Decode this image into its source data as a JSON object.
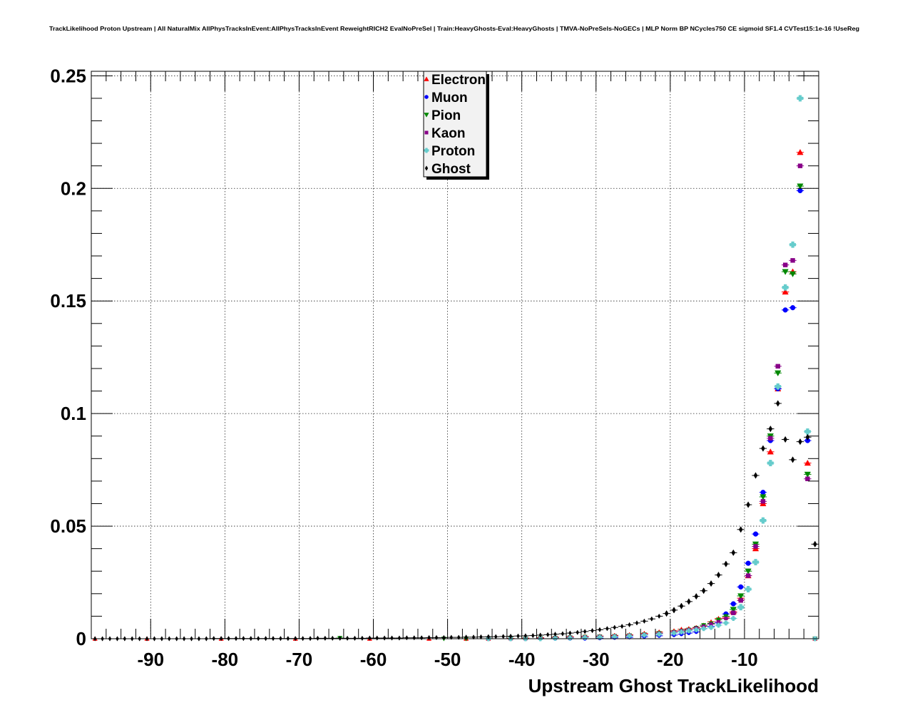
{
  "chart_data": {
    "type": "scatter",
    "title": "TrackLikelihood Proton Upstream | All NaturalMix AllPhysTracksInEvent:AllPhysTracksInEvent ReweightRICH2 EvalNoPreSel | Train:HeavyGhosts-Eval:HeavyGhosts | TMVA-NoPreSels-NoGECs | MLP Norm BP NCycles750 CE sigmoid SF1.4 CVTest15:1e-16 !UseReg",
    "xlabel": "Upstream Ghost TrackLikelihood",
    "ylabel": "",
    "xlim": [
      -98,
      0
    ],
    "ylim": [
      0,
      0.252
    ],
    "x_ticks": [
      -90,
      -80,
      -70,
      -60,
      -50,
      -40,
      -30,
      -20,
      -10
    ],
    "x_tick_labels": [
      "-90",
      "-80",
      "-70",
      "-60",
      "-50",
      "-40",
      "-30",
      "-20",
      "-10"
    ],
    "y_ticks": [
      0,
      0.05,
      0.1,
      0.15,
      0.2,
      0.25
    ],
    "y_tick_labels": [
      "0",
      "0.05",
      "0.1",
      "0.15",
      "0.2",
      "0.25"
    ],
    "grid": true,
    "legend_position": "top-center",
    "bin_width": 1,
    "series": [
      {
        "name": "Electron",
        "color": "#ff0000",
        "marker": "triangle-up",
        "x": [
          -97.5,
          -90.5,
          -80.5,
          -70.5,
          -60.5,
          -52.5,
          -47.5,
          -44.5,
          -41.5,
          -39.5,
          -37.5,
          -35.5,
          -33.5,
          -31.5,
          -29.5,
          -27.5,
          -25.5,
          -23.5,
          -21.5,
          -19.5,
          -18.5,
          -17.5,
          -16.5,
          -15.5,
          -14.5,
          -13.5,
          -12.5,
          -11.5,
          -10.5,
          -9.5,
          -8.5,
          -7.5,
          -6.5,
          -5.5,
          -4.5,
          -3.5,
          -2.5,
          -1.5,
          -0.5
        ],
        "y": [
          0,
          0,
          0,
          0,
          0,
          0,
          0,
          0,
          0.0002,
          0.0003,
          0.0005,
          0.0007,
          0.0009,
          0.001,
          0.0012,
          0.0015,
          0.0018,
          0.0024,
          0.003,
          0.0035,
          0.0042,
          0.0045,
          0.005,
          0.006,
          0.0075,
          0.009,
          0.0095,
          0.012,
          0.018,
          0.028,
          0.04,
          0.06,
          0.083,
          0.111,
          0.154,
          0.163,
          0.216,
          0.078,
          0
        ]
      },
      {
        "name": "Muon",
        "color": "#0000ff",
        "marker": "circle",
        "x": [
          -41.5,
          -39.5,
          -37.5,
          -35.5,
          -33.5,
          -31.5,
          -29.5,
          -27.5,
          -25.5,
          -23.5,
          -21.5,
          -19.5,
          -18.5,
          -17.5,
          -16.5,
          -15.5,
          -14.5,
          -13.5,
          -12.5,
          -11.5,
          -10.5,
          -9.5,
          -8.5,
          -7.5,
          -6.5,
          -5.5,
          -4.5,
          -3.5,
          -2.5,
          -1.5,
          -0.5
        ],
        "y": [
          0,
          0,
          0,
          0,
          0,
          0,
          0.0002,
          0.0004,
          0.0006,
          0.0009,
          0.0013,
          0.0016,
          0.002,
          0.0025,
          0.003,
          0.0045,
          0.0055,
          0.007,
          0.011,
          0.0155,
          0.023,
          0.0335,
          0.0465,
          0.065,
          0.088,
          0.111,
          0.146,
          0.147,
          0.199,
          0.088,
          0
        ]
      },
      {
        "name": "Pion",
        "color": "#008800",
        "marker": "triangle-down",
        "x": [
          -64.5,
          -50.5,
          -47.5,
          -44.5,
          -41.5,
          -39.5,
          -37.5,
          -35.5,
          -33.5,
          -31.5,
          -29.5,
          -27.5,
          -25.5,
          -23.5,
          -21.5,
          -19.5,
          -18.5,
          -17.5,
          -16.5,
          -15.5,
          -14.5,
          -13.5,
          -12.5,
          -11.5,
          -10.5,
          -9.5,
          -8.5,
          -7.5,
          -6.5,
          -5.5,
          -4.5,
          -3.5,
          -2.5,
          -1.5,
          -0.5
        ],
        "y": [
          0.0003,
          0,
          0,
          0,
          0,
          0,
          0.0002,
          0.0004,
          0.0006,
          0.0008,
          0.001,
          0.0012,
          0.0015,
          0.0019,
          0.0025,
          0.003,
          0.0035,
          0.004,
          0.0048,
          0.006,
          0.0068,
          0.0085,
          0.01,
          0.013,
          0.019,
          0.03,
          0.042,
          0.063,
          0.09,
          0.118,
          0.163,
          0.162,
          0.201,
          0.073,
          0
        ]
      },
      {
        "name": "Kaon",
        "color": "#880088",
        "marker": "square",
        "x": [
          -44.5,
          -41.5,
          -39.5,
          -37.5,
          -35.5,
          -33.5,
          -31.5,
          -29.5,
          -27.5,
          -25.5,
          -23.5,
          -21.5,
          -19.5,
          -18.5,
          -17.5,
          -16.5,
          -15.5,
          -14.5,
          -13.5,
          -12.5,
          -11.5,
          -10.5,
          -9.5,
          -8.5,
          -7.5,
          -6.5,
          -5.5,
          -4.5,
          -3.5,
          -2.5,
          -1.5,
          -0.5
        ],
        "y": [
          0,
          0,
          0,
          0.0002,
          0.0004,
          0.0006,
          0.0008,
          0.001,
          0.0012,
          0.0015,
          0.0019,
          0.0024,
          0.003,
          0.0035,
          0.004,
          0.0047,
          0.0055,
          0.0065,
          0.0075,
          0.009,
          0.0115,
          0.017,
          0.028,
          0.041,
          0.061,
          0.089,
          0.121,
          0.166,
          0.168,
          0.21,
          0.071,
          0
        ]
      },
      {
        "name": "Proton",
        "color": "#66cccc",
        "marker": "cross",
        "x": [
          -44.5,
          -41.5,
          -39.5,
          -37.5,
          -35.5,
          -33.5,
          -31.5,
          -29.5,
          -27.5,
          -25.5,
          -23.5,
          -21.5,
          -19.5,
          -18.5,
          -17.5,
          -16.5,
          -15.5,
          -14.5,
          -13.5,
          -12.5,
          -11.5,
          -10.5,
          -9.5,
          -8.5,
          -7.5,
          -6.5,
          -5.5,
          -4.5,
          -3.5,
          -2.5,
          -1.5,
          -0.5
        ],
        "y": [
          0,
          0,
          0,
          0,
          0.0002,
          0.0003,
          0.0005,
          0.0007,
          0.0009,
          0.0012,
          0.0016,
          0.002,
          0.0025,
          0.003,
          0.0035,
          0.004,
          0.0045,
          0.005,
          0.006,
          0.007,
          0.009,
          0.014,
          0.022,
          0.034,
          0.0525,
          0.078,
          0.112,
          0.156,
          0.175,
          0.24,
          0.092,
          0
        ]
      },
      {
        "name": "Ghost",
        "color": "#000000",
        "marker": "diamond",
        "x": [
          -97.5,
          -96.5,
          -95.5,
          -94.5,
          -93.5,
          -92.5,
          -91.5,
          -90.5,
          -89.5,
          -88.5,
          -87.5,
          -86.5,
          -85.5,
          -84.5,
          -83.5,
          -82.5,
          -81.5,
          -80.5,
          -79.5,
          -78.5,
          -77.5,
          -76.5,
          -75.5,
          -74.5,
          -73.5,
          -72.5,
          -71.5,
          -70.5,
          -69.5,
          -68.5,
          -67.5,
          -66.5,
          -65.5,
          -64.5,
          -63.5,
          -62.5,
          -61.5,
          -60.5,
          -59.5,
          -58.5,
          -57.5,
          -56.5,
          -55.5,
          -54.5,
          -53.5,
          -52.5,
          -51.5,
          -50.5,
          -49.5,
          -48.5,
          -47.5,
          -46.5,
          -45.5,
          -44.5,
          -43.5,
          -42.5,
          -41.5,
          -40.5,
          -39.5,
          -38.5,
          -37.5,
          -36.5,
          -35.5,
          -34.5,
          -33.5,
          -32.5,
          -31.5,
          -30.5,
          -29.5,
          -28.5,
          -27.5,
          -26.5,
          -25.5,
          -24.5,
          -23.5,
          -22.5,
          -21.5,
          -20.5,
          -19.5,
          -18.5,
          -17.5,
          -16.5,
          -15.5,
          -14.5,
          -13.5,
          -12.5,
          -11.5,
          -10.5,
          -9.5,
          -8.5,
          -7.5,
          -6.5,
          -5.5,
          -4.5,
          -3.5,
          -2.5,
          -1.5,
          -0.5
        ],
        "y": [
          0,
          0,
          0,
          0,
          0,
          0,
          0,
          0,
          0,
          0,
          0,
          0,
          0,
          0,
          0,
          0,
          0.0001,
          0.0001,
          0.0001,
          0.0001,
          0.0001,
          0.0001,
          0.0001,
          0.0001,
          0.0001,
          0.0001,
          0.0001,
          0.0001,
          0.0001,
          0.0001,
          0.0002,
          0.0002,
          0.0002,
          0.0002,
          0.0002,
          0.0002,
          0.0002,
          0.0003,
          0.0003,
          0.0003,
          0.0003,
          0.0003,
          0.0004,
          0.0004,
          0.0004,
          0.0005,
          0.0005,
          0.0005,
          0.0006,
          0.0006,
          0.0007,
          0.0007,
          0.0008,
          0.0009,
          0.0009,
          0.001,
          0.0011,
          0.0012,
          0.0013,
          0.0014,
          0.0016,
          0.0018,
          0.002,
          0.0022,
          0.0025,
          0.0028,
          0.0032,
          0.0036,
          0.004,
          0.0045,
          0.005,
          0.0055,
          0.0062,
          0.007,
          0.0078,
          0.0088,
          0.01,
          0.0112,
          0.0127,
          0.0145,
          0.0165,
          0.0188,
          0.0213,
          0.0245,
          0.0283,
          0.0332,
          0.0382,
          0.0485,
          0.0595,
          0.0725,
          0.0845,
          0.0932,
          0.1045,
          0.0885,
          0.0795,
          0.0875,
          0.0895,
          0.042
        ]
      }
    ]
  }
}
